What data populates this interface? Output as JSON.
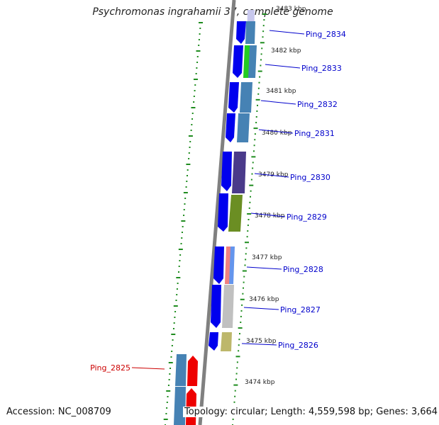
{
  "title": "Psychromonas ingrahamii 37, complete genome",
  "accession_text": "Accession: NC_008709",
  "summary_text": "Topology: circular; Length: 4,559,598 bp; Genes: 3,664",
  "colors": {
    "backbone": "#808080",
    "tick": "#1e8c1e",
    "forward_cds": "#0000ee",
    "highlight_cds": "#ee0000",
    "label_default": "#0000cc",
    "label_highlight": "#cc0000"
  },
  "kbp_labels": [
    "3483 kbp",
    "3482 kbp",
    "3481 kbp",
    "3480 kbp",
    "3479 kbp",
    "3478 kbp",
    "3477 kbp",
    "3476 kbp",
    "3475 kbp",
    "3474 kbp"
  ],
  "gene_labels": [
    {
      "name": "Ping_2834",
      "highlight": false
    },
    {
      "name": "Ping_2833",
      "highlight": false
    },
    {
      "name": "Ping_2832",
      "highlight": false
    },
    {
      "name": "Ping_2831",
      "highlight": false
    },
    {
      "name": "Ping_2830",
      "highlight": false
    },
    {
      "name": "Ping_2829",
      "highlight": false
    },
    {
      "name": "Ping_2828",
      "highlight": false
    },
    {
      "name": "Ping_2827",
      "highlight": false
    },
    {
      "name": "Ping_2826",
      "highlight": false
    },
    {
      "name": "Ping_2825",
      "highlight": true
    }
  ]
}
